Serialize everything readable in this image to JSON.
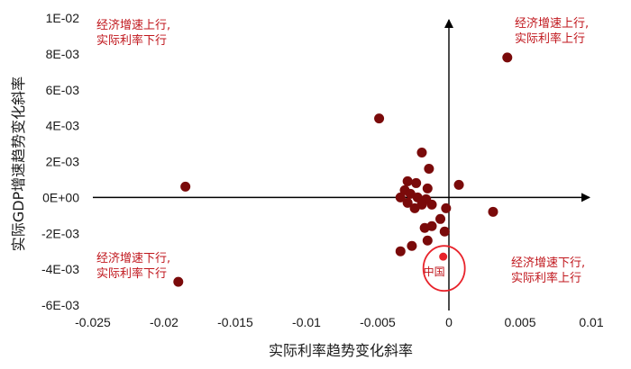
{
  "chart_data": {
    "type": "scatter",
    "xlabel": "实际利率趋势变化斜率",
    "ylabel": "实际GDP增速趋势变化斜率",
    "xlim": [
      -0.025,
      0.01
    ],
    "ylim": [
      -0.006,
      0.01
    ],
    "x_ticks": [
      -0.025,
      -0.02,
      -0.015,
      -0.01,
      -0.005,
      0,
      0.005,
      0.01
    ],
    "x_tick_labels": [
      "-0.025",
      "-0.02",
      "-0.015",
      "-0.01",
      "-0.005",
      "0",
      "0.005",
      "0.01"
    ],
    "y_ticks": [
      0.01,
      0.008,
      0.006,
      0.004,
      0.002,
      0,
      -0.002,
      -0.004,
      -0.006
    ],
    "y_tick_labels": [
      "1E-02",
      "8E-03",
      "6E-03",
      "4E-03",
      "2E-03",
      "0E+00",
      "-2E-03",
      "-4E-03",
      "-6E-03"
    ],
    "quadrant_labels": [
      {
        "position": "top-left",
        "lines": [
          "经济增速上行,",
          "实际利率下行"
        ]
      },
      {
        "position": "top-right",
        "lines": [
          "经济增速上行,",
          "实际利率上行"
        ]
      },
      {
        "position": "bottom-left",
        "lines": [
          "经济增速下行,",
          "实际利率下行"
        ]
      },
      {
        "position": "bottom-right",
        "lines": [
          "经济增速下行,",
          "实际利率上行"
        ]
      }
    ],
    "colors": {
      "points": "#7a0a0a",
      "highlight": "#e8232b",
      "quadrant_text": "#c0161c"
    },
    "highlight": {
      "label": "中国",
      "x": -0.0004,
      "y": -0.0033
    },
    "points": [
      {
        "x": 0.0041,
        "y": 0.0078
      },
      {
        "x": -0.0049,
        "y": 0.0044
      },
      {
        "x": -0.0019,
        "y": 0.0025
      },
      {
        "x": -0.0014,
        "y": 0.0016
      },
      {
        "x": -0.0185,
        "y": 0.0006
      },
      {
        "x": -0.019,
        "y": -0.0047
      },
      {
        "x": 0.0007,
        "y": 0.0007
      },
      {
        "x": 0.0031,
        "y": -0.0008
      },
      {
        "x": -0.0029,
        "y": 0.0009
      },
      {
        "x": -0.0023,
        "y": 0.0008
      },
      {
        "x": -0.0015,
        "y": 0.0005
      },
      {
        "x": -0.0031,
        "y": 0.0004
      },
      {
        "x": -0.0027,
        "y": 0.0002
      },
      {
        "x": -0.0034,
        "y": 0.0
      },
      {
        "x": -0.0022,
        "y": 0.0
      },
      {
        "x": -0.0016,
        "y": -0.0001
      },
      {
        "x": -0.0029,
        "y": -0.0003
      },
      {
        "x": -0.0019,
        "y": -0.0004
      },
      {
        "x": -0.0024,
        "y": -0.0006
      },
      {
        "x": -0.0012,
        "y": -0.0004
      },
      {
        "x": -0.0002,
        "y": -0.0006
      },
      {
        "x": -0.0006,
        "y": -0.0012
      },
      {
        "x": -0.0012,
        "y": -0.0016
      },
      {
        "x": -0.0017,
        "y": -0.0017
      },
      {
        "x": -0.0003,
        "y": -0.0019
      },
      {
        "x": -0.0015,
        "y": -0.0024
      },
      {
        "x": -0.0026,
        "y": -0.0027
      },
      {
        "x": -0.0034,
        "y": -0.003
      }
    ]
  }
}
